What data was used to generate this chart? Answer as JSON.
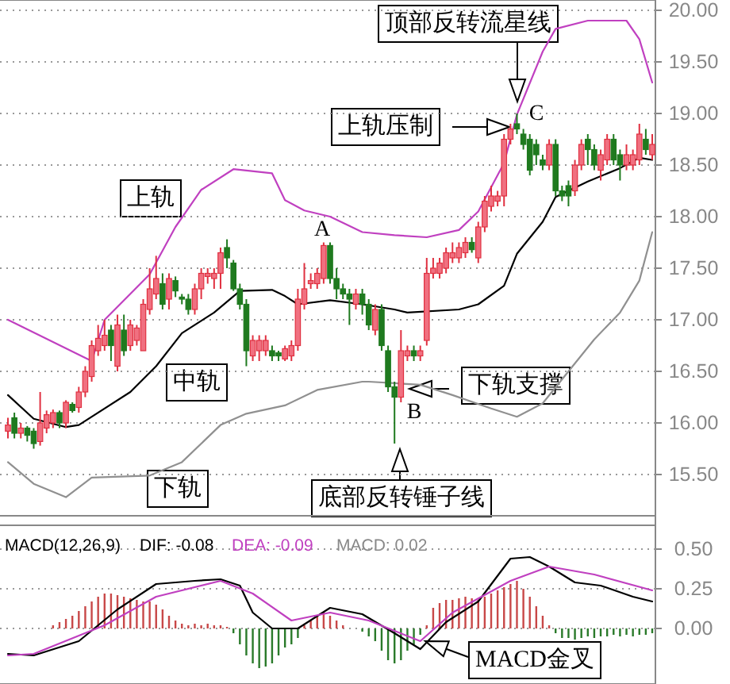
{
  "chart_data": [
    {
      "type": "candlestick",
      "categories": [
        null,
        null,
        null,
        null,
        null,
        null,
        null,
        null,
        null,
        null,
        null,
        null,
        null,
        null,
        null,
        null,
        null,
        null,
        null,
        null,
        null,
        null,
        null,
        null,
        null,
        null,
        null,
        null,
        null,
        null,
        null,
        null,
        null,
        null,
        null,
        null,
        null,
        null,
        null,
        null,
        null,
        null,
        null,
        null,
        null,
        null,
        null,
        null,
        null,
        null,
        null,
        null,
        null,
        null,
        null,
        null,
        null,
        null,
        null,
        null,
        null,
        null,
        null,
        null,
        null,
        null,
        null,
        null,
        null,
        null,
        null,
        null,
        null,
        null,
        null,
        null,
        null,
        null,
        null,
        null,
        null,
        null,
        null,
        null,
        null,
        null,
        null,
        null,
        null,
        null,
        null,
        null,
        null,
        null,
        null,
        null,
        null,
        null,
        null,
        null,
        null
      ],
      "ohlc": [
        [
          15.92,
          16.05,
          15.85,
          15.98
        ],
        [
          16.05,
          16.1,
          15.85,
          15.9
        ],
        [
          15.9,
          16.0,
          15.85,
          15.95
        ],
        [
          15.95,
          15.97,
          15.82,
          15.88
        ],
        [
          15.92,
          15.95,
          15.75,
          15.8
        ],
        [
          15.82,
          16.3,
          15.78,
          16.0
        ],
        [
          15.95,
          16.12,
          15.9,
          16.08
        ],
        [
          16.0,
          16.13,
          15.95,
          16.1
        ],
        [
          16.1,
          16.12,
          15.95,
          16.0
        ],
        [
          16.0,
          16.22,
          15.95,
          16.2
        ],
        [
          16.18,
          16.2,
          16.1,
          16.12
        ],
        [
          16.15,
          16.35,
          16.1,
          16.3
        ],
        [
          16.3,
          16.55,
          16.25,
          16.5
        ],
        [
          16.45,
          16.8,
          16.4,
          16.75
        ],
        [
          16.7,
          16.95,
          16.65,
          16.82
        ],
        [
          16.75,
          17.0,
          16.7,
          16.85
        ],
        [
          16.9,
          16.95,
          16.6,
          16.75
        ],
        [
          16.55,
          17.05,
          16.5,
          16.95
        ],
        [
          16.9,
          17.05,
          16.65,
          16.7
        ],
        [
          16.75,
          17.0,
          16.7,
          16.95
        ],
        [
          16.8,
          16.95,
          16.75,
          16.92
        ],
        [
          16.7,
          17.2,
          16.7,
          17.15
        ],
        [
          17.1,
          17.5,
          17.05,
          17.3
        ],
        [
          17.25,
          17.62,
          17.2,
          17.4
        ],
        [
          17.35,
          17.45,
          17.1,
          17.15
        ],
        [
          17.2,
          17.45,
          17.1,
          17.4
        ],
        [
          17.38,
          17.42,
          17.22,
          17.28
        ],
        [
          17.22,
          17.25,
          17.15,
          17.2
        ],
        [
          17.2,
          17.25,
          17.05,
          17.1
        ],
        [
          17.1,
          17.35,
          17.05,
          17.3
        ],
        [
          17.3,
          17.5,
          17.2,
          17.45
        ],
        [
          17.42,
          17.5,
          17.35,
          17.45
        ],
        [
          17.4,
          17.5,
          17.3,
          17.45
        ],
        [
          17.45,
          17.7,
          17.3,
          17.65
        ],
        [
          17.7,
          17.78,
          17.5,
          17.6
        ],
        [
          17.55,
          17.58,
          17.28,
          17.3
        ],
        [
          17.3,
          17.35,
          17.1,
          17.15
        ],
        [
          17.15,
          17.2,
          16.55,
          16.7
        ],
        [
          16.65,
          16.85,
          16.6,
          16.8
        ],
        [
          16.7,
          16.85,
          16.6,
          16.8
        ],
        [
          16.7,
          16.85,
          16.65,
          16.8
        ],
        [
          16.7,
          16.75,
          16.6,
          16.65
        ],
        [
          16.68,
          16.7,
          16.6,
          16.65
        ],
        [
          16.62,
          16.75,
          16.6,
          16.72
        ],
        [
          16.65,
          16.8,
          16.6,
          16.75
        ],
        [
          16.75,
          17.3,
          16.7,
          17.2
        ],
        [
          17.15,
          17.55,
          17.1,
          17.3
        ],
        [
          17.35,
          17.45,
          17.3,
          17.38
        ],
        [
          17.35,
          17.5,
          17.3,
          17.45
        ],
        [
          17.4,
          17.75,
          17.35,
          17.72
        ],
        [
          17.72,
          17.75,
          17.35,
          17.4
        ],
        [
          17.4,
          17.5,
          17.2,
          17.3
        ],
        [
          17.3,
          17.35,
          17.2,
          17.25
        ],
        [
          17.25,
          17.3,
          16.95,
          17.2
        ],
        [
          17.15,
          17.3,
          17.1,
          17.25
        ],
        [
          17.25,
          17.3,
          17.05,
          17.15
        ],
        [
          17.15,
          17.2,
          16.9,
          16.95
        ],
        [
          16.9,
          17.15,
          16.85,
          17.1
        ],
        [
          17.1,
          17.15,
          16.7,
          16.75
        ],
        [
          16.7,
          16.75,
          16.3,
          16.35
        ],
        [
          16.35,
          16.4,
          15.8,
          16.25
        ],
        [
          16.25,
          16.9,
          16.2,
          16.7
        ],
        [
          16.65,
          16.75,
          16.6,
          16.7
        ],
        [
          16.7,
          16.75,
          16.6,
          16.65
        ],
        [
          16.65,
          16.75,
          16.6,
          16.7
        ],
        [
          16.8,
          17.6,
          16.75,
          17.45
        ],
        [
          17.45,
          17.6,
          17.4,
          17.5
        ],
        [
          17.45,
          17.6,
          17.4,
          17.55
        ],
        [
          17.5,
          17.7,
          17.45,
          17.65
        ],
        [
          17.6,
          17.75,
          17.55,
          17.65
        ],
        [
          17.6,
          17.75,
          17.55,
          17.7
        ],
        [
          17.65,
          17.8,
          17.6,
          17.75
        ],
        [
          17.75,
          17.8,
          17.65,
          17.68
        ],
        [
          17.6,
          17.95,
          17.55,
          17.9
        ],
        [
          17.9,
          18.2,
          17.85,
          18.15
        ],
        [
          18.1,
          18.3,
          18.05,
          18.2
        ],
        [
          18.15,
          18.25,
          18.1,
          18.2
        ],
        [
          18.2,
          18.8,
          18.1,
          18.75
        ],
        [
          18.75,
          18.9,
          18.7,
          18.85
        ],
        [
          18.9,
          19.0,
          18.8,
          18.85
        ],
        [
          18.8,
          18.85,
          18.65,
          18.7
        ],
        [
          18.75,
          18.8,
          18.4,
          18.45
        ],
        [
          18.7,
          18.75,
          18.5,
          18.6
        ],
        [
          18.55,
          18.6,
          18.45,
          18.5
        ],
        [
          18.5,
          18.75,
          18.45,
          18.7
        ],
        [
          18.7,
          18.75,
          18.2,
          18.25
        ],
        [
          18.25,
          18.3,
          18.15,
          18.2
        ],
        [
          18.3,
          18.35,
          18.1,
          18.2
        ],
        [
          18.25,
          18.55,
          18.2,
          18.5
        ],
        [
          18.5,
          18.75,
          18.45,
          18.7
        ],
        [
          18.75,
          18.8,
          18.5,
          18.65
        ],
        [
          18.65,
          18.7,
          18.45,
          18.5
        ],
        [
          18.45,
          18.65,
          18.35,
          18.6
        ],
        [
          18.55,
          18.8,
          18.5,
          18.75
        ],
        [
          18.75,
          18.8,
          18.5,
          18.55
        ],
        [
          18.6,
          18.65,
          18.35,
          18.5
        ],
        [
          18.5,
          18.7,
          18.45,
          18.6
        ],
        [
          18.5,
          18.65,
          18.45,
          18.6
        ],
        [
          18.55,
          18.9,
          18.5,
          18.8
        ],
        [
          18.75,
          18.85,
          18.6,
          18.65
        ],
        [
          18.6,
          18.8,
          18.55,
          18.7
        ]
      ],
      "series": [
        {
          "type": "line",
          "color": "#c040c0",
          "values": [
            17.0,
            null,
            null,
            null,
            null,
            null,
            null,
            null,
            null,
            null,
            null,
            null,
            null,
            16.6,
            null,
            17.0,
            null,
            null,
            null,
            null,
            null,
            null,
            17.44,
            null,
            null,
            null,
            17.9,
            null,
            null,
            null,
            18.26,
            null,
            null,
            null,
            null,
            18.46,
            null,
            null,
            null,
            null,
            null,
            18.42,
            null,
            18.16,
            null,
            null,
            18.06,
            null,
            null,
            null,
            18.0,
            null,
            null,
            null,
            null,
            17.85,
            null,
            null,
            null,
            null,
            17.82,
            null,
            null,
            null,
            null,
            17.8,
            null,
            null,
            null,
            null,
            17.87,
            null,
            null,
            18.05,
            null,
            null,
            null,
            18.52,
            null,
            18.99,
            null,
            null,
            null,
            19.6,
            null,
            19.82,
            null,
            null,
            null,
            null,
            19.9,
            null,
            null,
            null,
            null,
            null,
            19.9,
            null,
            19.72,
            null,
            19.3
          ]
        },
        {
          "type": "line",
          "color": "#000000",
          "values": [
            16.27,
            null,
            null,
            null,
            16.04,
            null,
            null,
            null,
            null,
            15.96,
            null,
            15.98,
            null,
            null,
            null,
            null,
            null,
            null,
            null,
            16.3,
            null,
            null,
            null,
            16.55,
            null,
            null,
            null,
            16.87,
            null,
            null,
            null,
            null,
            17.07,
            null,
            null,
            null,
            17.28,
            null,
            null,
            null,
            null,
            17.29,
            null,
            17.23,
            null,
            17.15,
            null,
            null,
            null,
            null,
            17.19,
            null,
            null,
            null,
            null,
            17.15,
            null,
            null,
            null,
            null,
            17.1,
            null,
            17.07,
            null,
            null,
            null,
            null,
            null,
            null,
            null,
            17.1,
            null,
            null,
            17.15,
            null,
            null,
            null,
            17.33,
            null,
            17.64,
            null,
            null,
            null,
            17.95,
            null,
            18.19,
            null,
            null,
            null,
            null,
            18.34,
            null,
            null,
            null,
            null,
            18.47,
            null,
            null,
            18.57,
            null,
            18.55
          ]
        },
        {
          "type": "line",
          "color": "#909090",
          "values": [
            15.62,
            null,
            null,
            null,
            15.41,
            null,
            null,
            null,
            null,
            15.28,
            null,
            null,
            null,
            15.47,
            null,
            null,
            null,
            null,
            null,
            null,
            null,
            null,
            15.49,
            null,
            null,
            null,
            null,
            15.62,
            null,
            null,
            null,
            null,
            null,
            15.98,
            null,
            null,
            null,
            16.09,
            null,
            null,
            null,
            null,
            null,
            16.17,
            null,
            null,
            null,
            null,
            16.32,
            null,
            null,
            null,
            null,
            null,
            null,
            16.4,
            16.4,
            null,
            null,
            null,
            null,
            null,
            null,
            null,
            16.37,
            null,
            null,
            null,
            null,
            16.27,
            null,
            null,
            null,
            null,
            null,
            16.14,
            null,
            null,
            null,
            16.06,
            null,
            null,
            null,
            16.19,
            null,
            null,
            null,
            16.5,
            null,
            null,
            null,
            16.81,
            null,
            null,
            null,
            17.07,
            null,
            null,
            17.38,
            null,
            17.85
          ]
        }
      ],
      "ylim": [
        15.1,
        20.1
      ],
      "yticks": [
        {
          "value": 15.5,
          "label": "15.50"
        },
        {
          "value": 16,
          "label": "16.00"
        },
        {
          "value": 16.5,
          "label": "16.50"
        },
        {
          "value": 17,
          "label": "17.00"
        },
        {
          "value": 17.5,
          "label": "17.50"
        },
        {
          "value": 18,
          "label": "18.00"
        },
        {
          "value": 18.5,
          "label": "18.50"
        },
        {
          "value": 19,
          "label": "19.00"
        },
        {
          "value": 19.5,
          "label": "19.50"
        },
        {
          "value": 20,
          "label": "20.00"
        }
      ],
      "tick_labels": "y",
      "grid": "y",
      "annotations": [
        "上轨",
        "中轨",
        "下轨",
        "A",
        "B",
        "C",
        "顶部反转流星线",
        "上轨压制",
        "下轨支撑",
        "底部反转锤子线"
      ]
    },
    {
      "type": "bar",
      "title": "MACD(12,26,9)",
      "categories": [
        null,
        null,
        null,
        null,
        null,
        null,
        null,
        null,
        null,
        null,
        null,
        null,
        null,
        null,
        null,
        null,
        null,
        null,
        null,
        null,
        null,
        null,
        null,
        null,
        null,
        null,
        null,
        null,
        null,
        null,
        null,
        null,
        null,
        null,
        null,
        null,
        null,
        null,
        null,
        null,
        null,
        null,
        null,
        null,
        null,
        null,
        null,
        null,
        null,
        null,
        null,
        null,
        null,
        null,
        null,
        null,
        null,
        null,
        null,
        null,
        null,
        null,
        null,
        null,
        null,
        null,
        null,
        null,
        null,
        null,
        null,
        null,
        null,
        null,
        null,
        null,
        null,
        null,
        null,
        null,
        null,
        null,
        null,
        null,
        null,
        null,
        null,
        null,
        null,
        null,
        null,
        null,
        null,
        null,
        null,
        null,
        null,
        null,
        null,
        null,
        null
      ],
      "series": [
        {
          "type": "bar",
          "color": "#c84848",
          "values": [
            null,
            null,
            null,
            null,
            null,
            null,
            null,
            0.02,
            0.04,
            0.06,
            0.08,
            0.11,
            0.14,
            0.17,
            0.2,
            0.22,
            0.22,
            0.21,
            0.2,
            0.19,
            0.18,
            0.17,
            0.17,
            0.15,
            0.12,
            0.08,
            0.05,
            0.03,
            0.02,
            0.03,
            0.02,
            0.03,
            0.02,
            0.02,
            0.01,
            null,
            null,
            null,
            null,
            null,
            null,
            null,
            null,
            null,
            null,
            null,
            0.02,
            0.05,
            0.08,
            0.1,
            0.08,
            0.05,
            0.02,
            null,
            null,
            null,
            null,
            null,
            null,
            null,
            null,
            null,
            null,
            null,
            null,
            0.02,
            0.13,
            0.16,
            0.18,
            0.18,
            0.19,
            0.2,
            0.19,
            0.18,
            0.2,
            0.22,
            0.24,
            0.26,
            0.28,
            0.3,
            0.25,
            0.2,
            0.14,
            0.08,
            0.02,
            null,
            null,
            null,
            null,
            null,
            null,
            null,
            null,
            null,
            null,
            null,
            null,
            null,
            null,
            null,
            null
          ]
        },
        {
          "type": "bar",
          "color": "#2a7a2a",
          "values": [
            null,
            null,
            null,
            null,
            null,
            null,
            null,
            null,
            null,
            null,
            null,
            null,
            null,
            null,
            null,
            null,
            null,
            null,
            null,
            null,
            null,
            null,
            null,
            null,
            null,
            null,
            null,
            null,
            null,
            null,
            null,
            null,
            null,
            null,
            null,
            -0.03,
            -0.1,
            -0.17,
            -0.22,
            -0.25,
            -0.24,
            -0.22,
            -0.17,
            -0.12,
            -0.1,
            -0.06,
            null,
            null,
            null,
            null,
            null,
            null,
            null,
            null,
            null,
            -0.02,
            -0.05,
            -0.08,
            -0.14,
            -0.2,
            -0.22,
            -0.2,
            -0.14,
            -0.1,
            -0.04,
            null,
            null,
            null,
            null,
            null,
            null,
            null,
            null,
            null,
            null,
            null,
            null,
            null,
            null,
            null,
            null,
            null,
            null,
            null,
            null,
            -0.03,
            -0.06,
            -0.06,
            -0.07,
            -0.06,
            -0.05,
            -0.06,
            -0.05,
            -0.05,
            -0.04,
            -0.05,
            -0.04,
            -0.05,
            -0.04,
            -0.04,
            -0.03
          ]
        },
        {
          "type": "line",
          "name": "DIF: -0.08",
          "color": "#000000",
          "values": [
            -0.16,
            null,
            null,
            null,
            -0.17,
            null,
            null,
            null,
            null,
            null,
            null,
            -0.08,
            null,
            null,
            null,
            null,
            null,
            0.12,
            null,
            null,
            null,
            null,
            null,
            0.28,
            null,
            null,
            null,
            null,
            null,
            0.3,
            null,
            null,
            null,
            0.31,
            null,
            null,
            0.27,
            null,
            0.1,
            null,
            null,
            0.0,
            null,
            null,
            null,
            0.0,
            null,
            null,
            null,
            null,
            0.13,
            null,
            null,
            null,
            null,
            0.09,
            null,
            null,
            null,
            null,
            -0.03,
            null,
            null,
            null,
            -0.13,
            null,
            null,
            null,
            0.04,
            null,
            null,
            null,
            null,
            0.17,
            null,
            null,
            null,
            null,
            0.44,
            null,
            null,
            0.45,
            null,
            null,
            0.39,
            null,
            null,
            null,
            0.29,
            null,
            null,
            null,
            0.27,
            null,
            null,
            null,
            null,
            0.2,
            null,
            null,
            0.17
          ]
        },
        {
          "type": "line",
          "name": "DEA: -0.09",
          "color": "#c040c0",
          "values": [
            -0.17,
            null,
            null,
            null,
            -0.16,
            null,
            null,
            null,
            null,
            null,
            null,
            null,
            null,
            null,
            null,
            0.02,
            null,
            null,
            null,
            null,
            null,
            null,
            null,
            0.2,
            null,
            null,
            null,
            null,
            null,
            null,
            null,
            null,
            null,
            0.3,
            null,
            null,
            null,
            null,
            0.22,
            null,
            null,
            null,
            null,
            null,
            0.05,
            null,
            null,
            null,
            null,
            null,
            0.1,
            null,
            null,
            null,
            null,
            null,
            0.05,
            null,
            null,
            null,
            null,
            null,
            null,
            null,
            -0.08,
            null,
            null,
            null,
            null,
            0.1,
            null,
            null,
            null,
            null,
            null,
            null,
            null,
            null,
            0.3,
            null,
            null,
            null,
            null,
            null,
            0.39,
            null,
            null,
            null,
            null,
            null,
            null,
            0.34,
            null,
            null,
            null,
            null,
            null,
            null,
            null,
            null,
            0.24
          ]
        }
      ],
      "ylim": [
        -0.35,
        0.65
      ],
      "yticks": [
        {
          "value": 0,
          "label": "0.00"
        },
        {
          "value": 0.25,
          "label": "0.25"
        },
        {
          "value": 0.5,
          "label": "0.50"
        }
      ],
      "tick_labels": "y",
      "grid": "y",
      "legend": "top left",
      "annotations": [
        "MACD: 0.02",
        "MACD金叉"
      ]
    }
  ]
}
